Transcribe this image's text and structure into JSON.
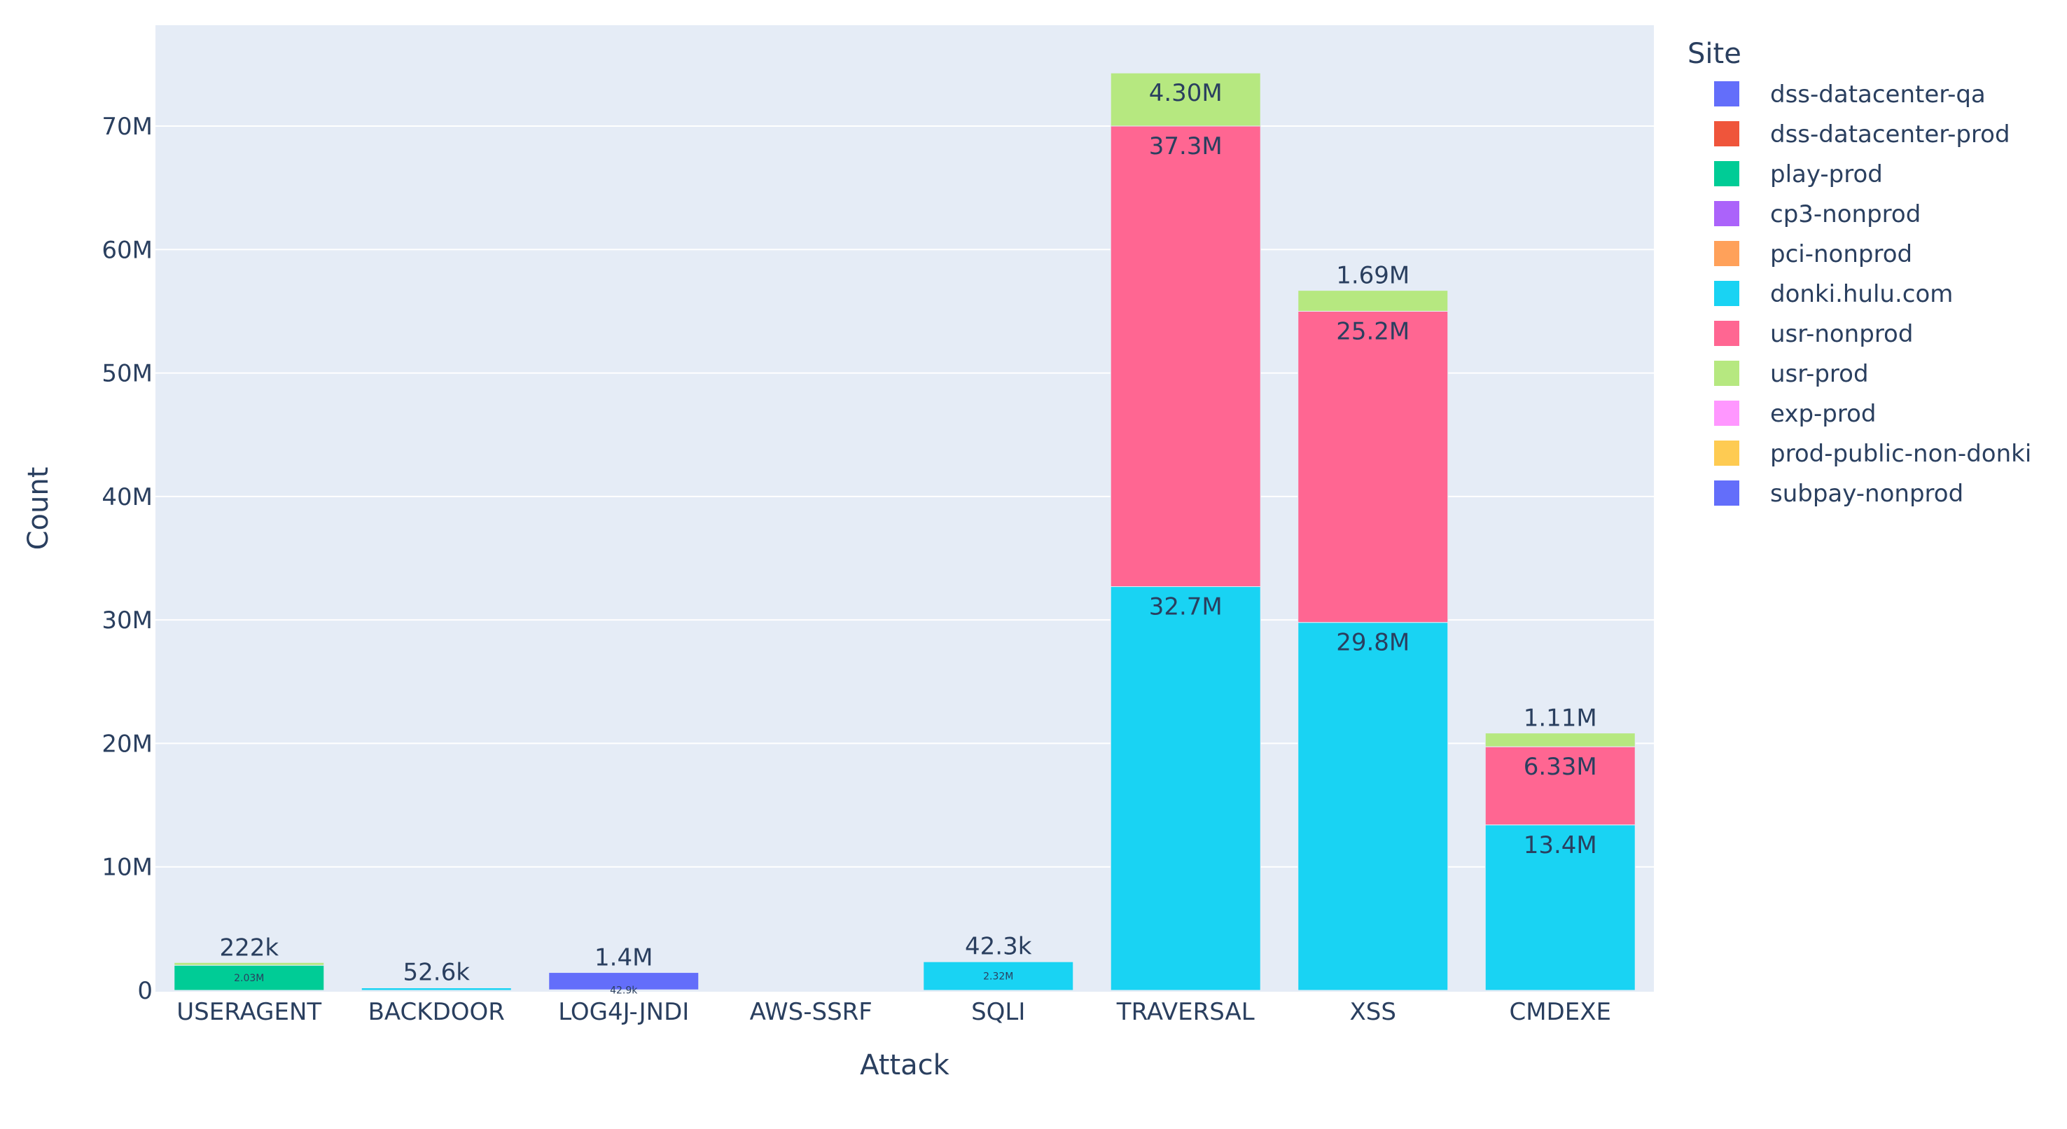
{
  "chart_data": {
    "type": "bar",
    "barmode": "stack",
    "xlabel": "Attack",
    "ylabel": "Count",
    "ylim": [
      0,
      77000000
    ],
    "yticks": [
      0,
      10000000,
      20000000,
      30000000,
      40000000,
      50000000,
      60000000,
      70000000
    ],
    "ytick_labels": [
      "0",
      "10M",
      "20M",
      "30M",
      "40M",
      "50M",
      "60M",
      "70M"
    ],
    "grid": true,
    "legend": {
      "title": "Site",
      "position": "right"
    },
    "categories": [
      "USERAGENT",
      "BACKDOOR",
      "LOG4J-JNDI",
      "AWS-SSRF",
      "SQLI",
      "TRAVERSAL",
      "XSS",
      "CMDEXE"
    ],
    "series": [
      {
        "name": "dss-datacenter-qa",
        "color": "#636efa",
        "values": [
          0,
          0,
          0,
          0,
          0,
          0,
          0,
          0
        ],
        "labels": [
          "",
          "",
          "",
          "",
          "",
          "",
          "",
          ""
        ]
      },
      {
        "name": "dss-datacenter-prod",
        "color": "#EF553B",
        "values": [
          0,
          0,
          0,
          0,
          0,
          0,
          0,
          0
        ],
        "labels": [
          "",
          "",
          "",
          "",
          "",
          "",
          "",
          ""
        ]
      },
      {
        "name": "play-prod",
        "color": "#00cc96",
        "values": [
          2030000,
          0,
          0,
          0,
          0,
          0,
          0,
          0
        ],
        "labels": [
          "2.03M",
          "",
          "",
          "",
          "",
          "",
          "",
          ""
        ]
      },
      {
        "name": "cp3-nonprod",
        "color": "#ab63fa",
        "values": [
          0,
          0,
          0,
          0,
          0,
          0,
          0,
          0
        ],
        "labels": [
          "",
          "",
          "",
          "",
          "",
          "",
          "",
          ""
        ]
      },
      {
        "name": "pci-nonprod",
        "color": "#FFA15A",
        "values": [
          0,
          0,
          0,
          0,
          0,
          0,
          0,
          0
        ],
        "labels": [
          "",
          "",
          "",
          "",
          "",
          "",
          "",
          ""
        ]
      },
      {
        "name": "donki.hulu.com",
        "color": "#19d3f3",
        "values": [
          0,
          200000,
          0,
          0,
          2320000,
          32700000,
          29800000,
          13400000
        ],
        "labels": [
          "",
          "",
          "",
          "",
          "2.32M",
          "32.7M",
          "29.8M",
          "13.4M"
        ]
      },
      {
        "name": "usr-nonprod",
        "color": "#FF6692",
        "values": [
          0,
          0,
          0,
          0,
          0,
          37300000,
          25200000,
          6330000
        ],
        "labels": [
          "",
          "",
          "",
          "",
          "",
          "37.3M",
          "25.2M",
          "6.33M"
        ]
      },
      {
        "name": "usr-prod",
        "color": "#B6E880",
        "values": [
          222000,
          52600,
          42900,
          0,
          42300,
          4300000,
          1690000,
          1110000
        ],
        "labels": [
          "222k",
          "52.6k",
          "42.9k",
          "",
          "42.3k",
          "4.30M",
          "1.69M",
          "1.11M"
        ]
      },
      {
        "name": "exp-prod",
        "color": "#FF97FF",
        "values": [
          0,
          0,
          0,
          0,
          0,
          0,
          0,
          0
        ],
        "labels": [
          "",
          "",
          "",
          "",
          "",
          "",
          "",
          ""
        ]
      },
      {
        "name": "prod-public-non-donki",
        "color": "#FECB52",
        "values": [
          0,
          0,
          0,
          0,
          0,
          0,
          0,
          0
        ],
        "labels": [
          "",
          "",
          "",
          "",
          "",
          "",
          "",
          ""
        ]
      },
      {
        "name": "subpay-nonprod",
        "color": "#636efa",
        "values": [
          0,
          0,
          1400000,
          0,
          0,
          0,
          0,
          0
        ],
        "labels": [
          "",
          "",
          "1.4M",
          "",
          "",
          "",
          "",
          ""
        ]
      }
    ]
  },
  "colors": {
    "plot_background": "#e5ecf6",
    "gridline": "#ffffff",
    "text": "#2a3f5f"
  }
}
